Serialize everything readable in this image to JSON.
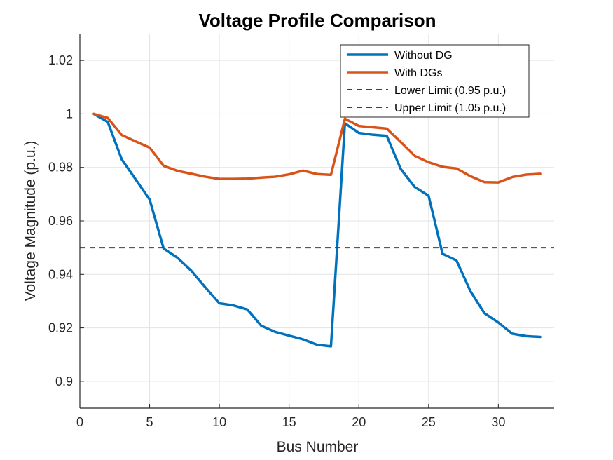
{
  "chart_data": {
    "type": "line",
    "title": "Voltage Profile Comparison",
    "xlabel": "Bus Number",
    "ylabel": "Voltage Magnitude (p.u.)",
    "xlim": [
      0,
      34
    ],
    "ylim": [
      0.89,
      1.03
    ],
    "xticks": [
      0,
      5,
      10,
      15,
      20,
      25,
      30
    ],
    "yticks": [
      0.9,
      0.92,
      0.94,
      0.96,
      0.98,
      1,
      1.02
    ],
    "xtick_labels": [
      "0",
      "5",
      "10",
      "15",
      "20",
      "25",
      "30"
    ],
    "ytick_labels": [
      "0.9",
      "0.92",
      "0.94",
      "0.96",
      "0.98",
      "1",
      "1.02"
    ],
    "grid": true,
    "legend_position": "top-right",
    "x": [
      1,
      2,
      3,
      4,
      5,
      6,
      7,
      8,
      9,
      10,
      11,
      12,
      13,
      14,
      15,
      16,
      17,
      18,
      19,
      20,
      21,
      22,
      23,
      24,
      25,
      26,
      27,
      28,
      29,
      30,
      31,
      32,
      33
    ],
    "series": [
      {
        "name": "Without DG",
        "color": "#0072BD",
        "style": "solid",
        "values": [
          1.0,
          0.997,
          0.983,
          0.9755,
          0.968,
          0.9497,
          0.9462,
          0.9413,
          0.9351,
          0.9292,
          0.9284,
          0.9269,
          0.9208,
          0.9185,
          0.9171,
          0.9157,
          0.9137,
          0.9131,
          0.9965,
          0.9929,
          0.9922,
          0.9918,
          0.9794,
          0.9727,
          0.9694,
          0.9477,
          0.9452,
          0.9337,
          0.9255,
          0.922,
          0.9178,
          0.9169,
          0.9166
        ]
      },
      {
        "name": "With DGs",
        "color": "#D95319",
        "style": "solid",
        "values": [
          1.0,
          0.9985,
          0.9921,
          0.9897,
          0.9874,
          0.9806,
          0.9787,
          0.9776,
          0.9765,
          0.9757,
          0.9757,
          0.9758,
          0.9762,
          0.9765,
          0.9774,
          0.9788,
          0.9775,
          0.9772,
          0.9982,
          0.9955,
          0.995,
          0.9945,
          0.9895,
          0.9843,
          0.9819,
          0.9802,
          0.9796,
          0.9767,
          0.9745,
          0.9744,
          0.9764,
          0.9773,
          0.9776
        ]
      },
      {
        "name": "Lower Limit (0.95 p.u.)",
        "color": "#404040",
        "style": "dashed",
        "constant": 0.95
      },
      {
        "name": "Upper Limit (1.05 p.u.)",
        "color": "#404040",
        "style": "dashed",
        "constant": 1.05
      }
    ]
  }
}
